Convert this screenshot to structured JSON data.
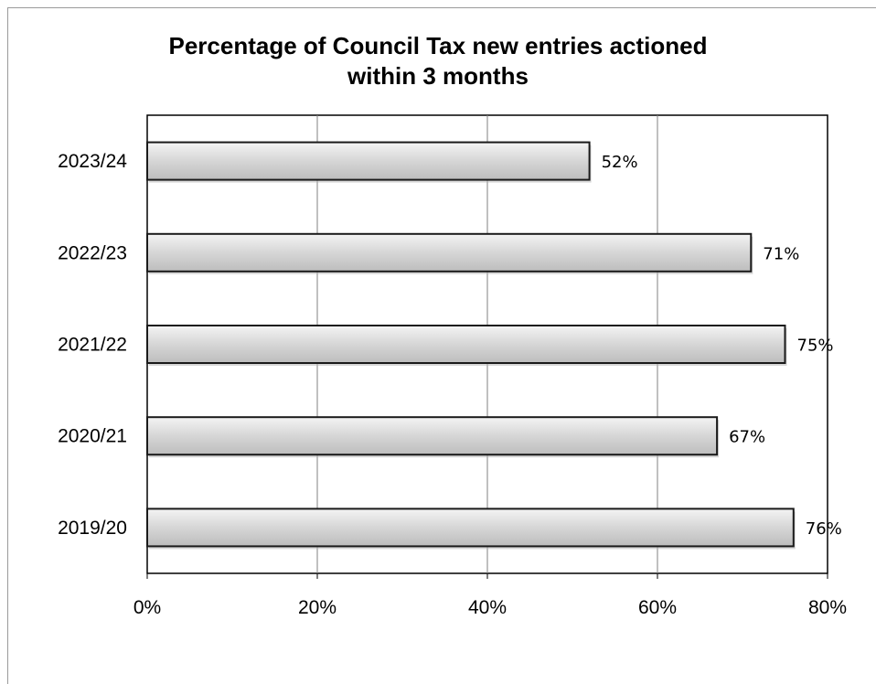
{
  "chart_data": {
    "type": "bar",
    "orientation": "horizontal",
    "title": "Percentage of Council Tax new entries actioned within 3 months",
    "title_lines": [
      "Percentage of Council Tax new entries actioned",
      "within 3 months"
    ],
    "categories": [
      "2023/24",
      "2022/23",
      "2021/22",
      "2020/21",
      "2019/20"
    ],
    "values": [
      52,
      71,
      75,
      67,
      76
    ],
    "data_labels": [
      "52%",
      "71%",
      "75%",
      "67%",
      "76%"
    ],
    "xlim": [
      0,
      80
    ],
    "x_ticks": [
      0,
      20,
      40,
      60,
      80
    ],
    "x_tick_labels": [
      "0%",
      "20%",
      "40%",
      "60%",
      "80%"
    ],
    "grid": "vertical",
    "legend": "none",
    "bar_color": "#d4d4d4",
    "bar_edge_color": "#1a1a1a"
  }
}
